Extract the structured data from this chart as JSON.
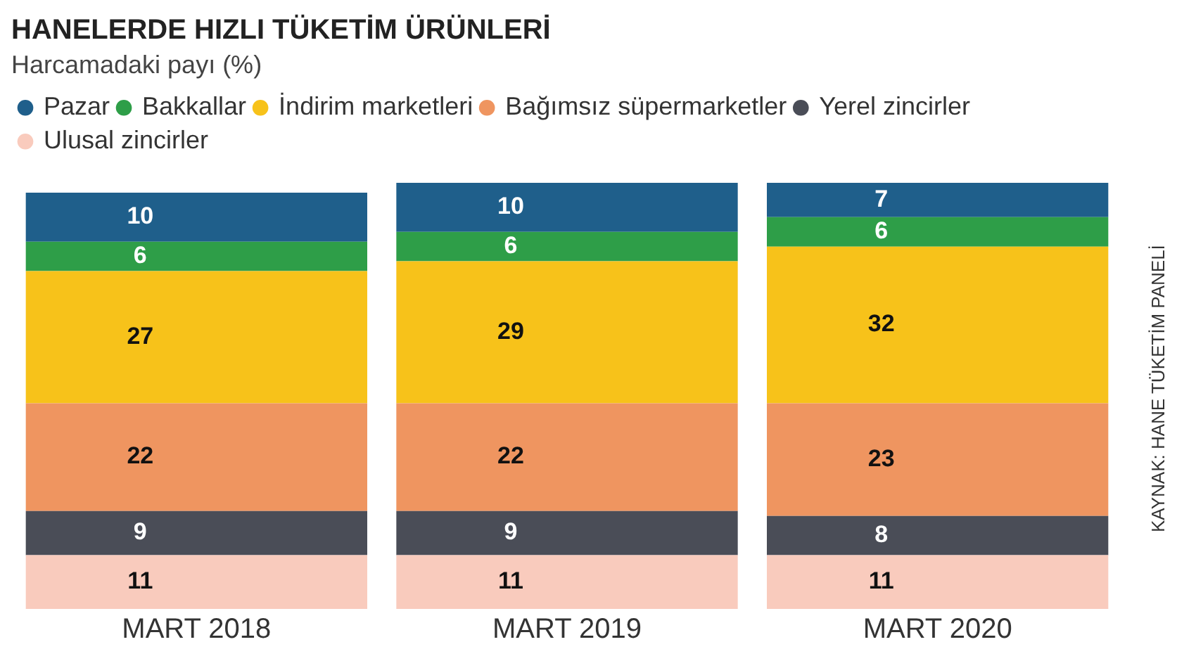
{
  "chart_data": {
    "type": "bar",
    "title": "HANELERDE HIZLI TÜKETİM ÜRÜNLERİ",
    "subtitle": "Harcamadaki payı (%)",
    "annotations": [
      "KAYNAK: HANE TÜKETİM PANELİ"
    ],
    "categories": [
      "MART 2018",
      "MART 2019",
      "MART 2020"
    ],
    "stacked": true,
    "data_labels": true,
    "grid": false,
    "legend": "top",
    "tick_labels": "x",
    "series": [
      {
        "name": "Ulusal zincirler",
        "color": "#f9cbbd",
        "values": [
          11,
          11,
          11
        ]
      },
      {
        "name": "Yerel zincirler",
        "color": "#4a4d57",
        "values": [
          9,
          9,
          8
        ]
      },
      {
        "name": "Bağımsız süpermarketler",
        "color": "#ef9560",
        "values": [
          22,
          22,
          23
        ]
      },
      {
        "name": "İndirim marketleri",
        "color": "#f7c21a",
        "values": [
          27,
          29,
          32
        ]
      },
      {
        "name": "Bakkallar",
        "color": "#2e9e48",
        "values": [
          6,
          6,
          6
        ]
      },
      {
        "name": "Pazar",
        "color": "#1f5f8b",
        "values": [
          10,
          10,
          7
        ]
      }
    ]
  }
}
